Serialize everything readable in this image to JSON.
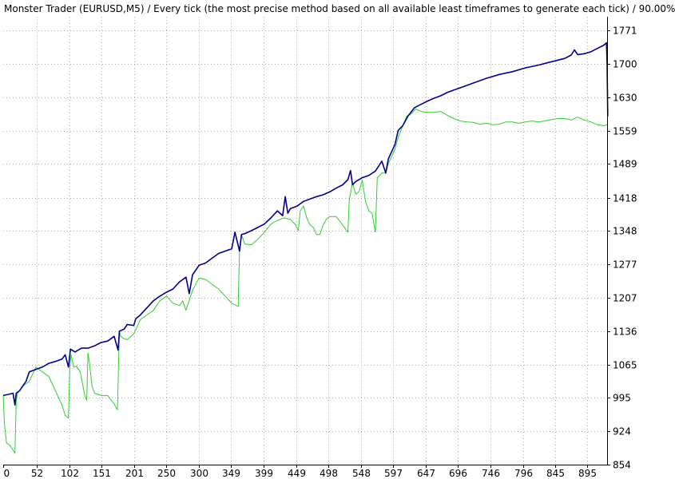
{
  "chart_data": {
    "type": "line",
    "title": "Monster Trader (EURUSD,M5) / Every tick (the most precise method based on all available least timeframes to generate each tick) / 90.00%",
    "xlabel": "",
    "ylabel": "",
    "xlim": [
      0,
      925
    ],
    "ylim": [
      854,
      1800
    ],
    "x_ticks": [
      0,
      52,
      102,
      151,
      201,
      250,
      300,
      349,
      399,
      449,
      498,
      548,
      597,
      647,
      696,
      746,
      796,
      845,
      895
    ],
    "y_ticks": [
      854,
      924,
      995,
      1065,
      1136,
      1207,
      1277,
      1348,
      1418,
      1489,
      1559,
      1630,
      1700,
      1771
    ],
    "grid": true,
    "colors": {
      "balance": "#00008b",
      "equity": "#32cd32",
      "grid": "#b0b0b0"
    },
    "series": [
      {
        "key": "balance",
        "values": [
          [
            0,
            1000
          ],
          [
            10,
            1003
          ],
          [
            15,
            1005
          ],
          [
            18,
            980
          ],
          [
            20,
            1005
          ],
          [
            25,
            1010
          ],
          [
            30,
            1020
          ],
          [
            35,
            1030
          ],
          [
            40,
            1050
          ],
          [
            50,
            1055
          ],
          [
            60,
            1060
          ],
          [
            70,
            1068
          ],
          [
            80,
            1072
          ],
          [
            90,
            1077
          ],
          [
            95,
            1086
          ],
          [
            100,
            1060
          ],
          [
            103,
            1098
          ],
          [
            110,
            1092
          ],
          [
            120,
            1100
          ],
          [
            130,
            1100
          ],
          [
            140,
            1105
          ],
          [
            150,
            1112
          ],
          [
            160,
            1115
          ],
          [
            170,
            1125
          ],
          [
            176,
            1096
          ],
          [
            178,
            1136
          ],
          [
            185,
            1140
          ],
          [
            190,
            1150
          ],
          [
            200,
            1148
          ],
          [
            203,
            1162
          ],
          [
            210,
            1170
          ],
          [
            220,
            1185
          ],
          [
            230,
            1200
          ],
          [
            240,
            1210
          ],
          [
            250,
            1218
          ],
          [
            260,
            1225
          ],
          [
            270,
            1240
          ],
          [
            280,
            1250
          ],
          [
            285,
            1215
          ],
          [
            290,
            1255
          ],
          [
            300,
            1275
          ],
          [
            310,
            1280
          ],
          [
            320,
            1290
          ],
          [
            330,
            1300
          ],
          [
            340,
            1305
          ],
          [
            350,
            1310
          ],
          [
            355,
            1345
          ],
          [
            362,
            1305
          ],
          [
            365,
            1340
          ],
          [
            370,
            1342
          ],
          [
            380,
            1348
          ],
          [
            390,
            1355
          ],
          [
            400,
            1362
          ],
          [
            410,
            1375
          ],
          [
            420,
            1390
          ],
          [
            428,
            1380
          ],
          [
            432,
            1420
          ],
          [
            436,
            1385
          ],
          [
            440,
            1395
          ],
          [
            450,
            1400
          ],
          [
            460,
            1410
          ],
          [
            470,
            1415
          ],
          [
            480,
            1420
          ],
          [
            490,
            1424
          ],
          [
            500,
            1430
          ],
          [
            510,
            1438
          ],
          [
            520,
            1445
          ],
          [
            528,
            1456
          ],
          [
            532,
            1475
          ],
          [
            535,
            1445
          ],
          [
            540,
            1452
          ],
          [
            550,
            1460
          ],
          [
            560,
            1465
          ],
          [
            570,
            1474
          ],
          [
            580,
            1495
          ],
          [
            586,
            1470
          ],
          [
            590,
            1500
          ],
          [
            600,
            1530
          ],
          [
            605,
            1560
          ],
          [
            612,
            1570
          ],
          [
            620,
            1590
          ],
          [
            630,
            1608
          ],
          [
            640,
            1615
          ],
          [
            650,
            1622
          ],
          [
            660,
            1628
          ],
          [
            670,
            1633
          ],
          [
            680,
            1640
          ],
          [
            690,
            1645
          ],
          [
            700,
            1650
          ],
          [
            720,
            1660
          ],
          [
            740,
            1670
          ],
          [
            760,
            1678
          ],
          [
            780,
            1684
          ],
          [
            800,
            1692
          ],
          [
            820,
            1698
          ],
          [
            840,
            1705
          ],
          [
            860,
            1712
          ],
          [
            870,
            1719
          ],
          [
            875,
            1730
          ],
          [
            880,
            1720
          ],
          [
            890,
            1722
          ],
          [
            900,
            1726
          ],
          [
            910,
            1733
          ],
          [
            920,
            1740
          ],
          [
            924,
            1745
          ],
          [
            925,
            1700
          ],
          [
            926,
            1590
          ]
        ]
      },
      {
        "key": "equity",
        "values": [
          [
            0,
            1000
          ],
          [
            2,
            940
          ],
          [
            5,
            900
          ],
          [
            10,
            895
          ],
          [
            15,
            885
          ],
          [
            18,
            878
          ],
          [
            20,
            990
          ],
          [
            22,
            1005
          ],
          [
            30,
            1020
          ],
          [
            40,
            1030
          ],
          [
            50,
            1060
          ],
          [
            60,
            1050
          ],
          [
            70,
            1040
          ],
          [
            80,
            1010
          ],
          [
            90,
            980
          ],
          [
            95,
            958
          ],
          [
            100,
            952
          ],
          [
            102,
            1060
          ],
          [
            104,
            1086
          ],
          [
            108,
            1060
          ],
          [
            112,
            1062
          ],
          [
            118,
            1050
          ],
          [
            125,
            1000
          ],
          [
            128,
            990
          ],
          [
            130,
            1090
          ],
          [
            132,
            1070
          ],
          [
            136,
            1020
          ],
          [
            140,
            1005
          ],
          [
            150,
            1000
          ],
          [
            160,
            1000
          ],
          [
            170,
            982
          ],
          [
            175,
            970
          ],
          [
            178,
            1136
          ],
          [
            180,
            1125
          ],
          [
            185,
            1120
          ],
          [
            190,
            1118
          ],
          [
            200,
            1130
          ],
          [
            210,
            1160
          ],
          [
            220,
            1170
          ],
          [
            230,
            1180
          ],
          [
            240,
            1200
          ],
          [
            250,
            1210
          ],
          [
            260,
            1195
          ],
          [
            270,
            1190
          ],
          [
            275,
            1200
          ],
          [
            280,
            1180
          ],
          [
            290,
            1222
          ],
          [
            300,
            1248
          ],
          [
            310,
            1245
          ],
          [
            320,
            1235
          ],
          [
            330,
            1225
          ],
          [
            340,
            1210
          ],
          [
            350,
            1195
          ],
          [
            360,
            1188
          ],
          [
            362,
            1310
          ],
          [
            365,
            1340
          ],
          [
            370,
            1320
          ],
          [
            380,
            1318
          ],
          [
            390,
            1330
          ],
          [
            400,
            1345
          ],
          [
            410,
            1362
          ],
          [
            420,
            1370
          ],
          [
            430,
            1375
          ],
          [
            440,
            1372
          ],
          [
            448,
            1360
          ],
          [
            452,
            1348
          ],
          [
            455,
            1390
          ],
          [
            460,
            1400
          ],
          [
            465,
            1375
          ],
          [
            470,
            1360
          ],
          [
            475,
            1355
          ],
          [
            480,
            1340
          ],
          [
            485,
            1340
          ],
          [
            490,
            1360
          ],
          [
            495,
            1372
          ],
          [
            500,
            1378
          ],
          [
            510,
            1378
          ],
          [
            520,
            1360
          ],
          [
            528,
            1345
          ],
          [
            530,
            1412
          ],
          [
            535,
            1450
          ],
          [
            540,
            1425
          ],
          [
            545,
            1430
          ],
          [
            550,
            1455
          ],
          [
            555,
            1410
          ],
          [
            560,
            1390
          ],
          [
            565,
            1385
          ],
          [
            570,
            1345
          ],
          [
            573,
            1460
          ],
          [
            580,
            1470
          ],
          [
            586,
            1470
          ],
          [
            590,
            1490
          ],
          [
            600,
            1520
          ],
          [
            605,
            1545
          ],
          [
            612,
            1570
          ],
          [
            618,
            1590
          ],
          [
            625,
            1595
          ],
          [
            632,
            1605
          ],
          [
            640,
            1600
          ],
          [
            650,
            1598
          ],
          [
            660,
            1598
          ],
          [
            670,
            1600
          ],
          [
            680,
            1592
          ],
          [
            690,
            1585
          ],
          [
            700,
            1580
          ],
          [
            710,
            1578
          ],
          [
            720,
            1577
          ],
          [
            730,
            1573
          ],
          [
            740,
            1575
          ],
          [
            750,
            1572
          ],
          [
            760,
            1573
          ],
          [
            770,
            1578
          ],
          [
            780,
            1578
          ],
          [
            790,
            1575
          ],
          [
            800,
            1578
          ],
          [
            810,
            1580
          ],
          [
            820,
            1578
          ],
          [
            830,
            1580
          ],
          [
            840,
            1583
          ],
          [
            850,
            1585
          ],
          [
            860,
            1585
          ],
          [
            870,
            1582
          ],
          [
            880,
            1588
          ],
          [
            890,
            1582
          ],
          [
            900,
            1578
          ],
          [
            910,
            1572
          ],
          [
            920,
            1570
          ],
          [
            926,
            1572
          ]
        ]
      }
    ]
  }
}
